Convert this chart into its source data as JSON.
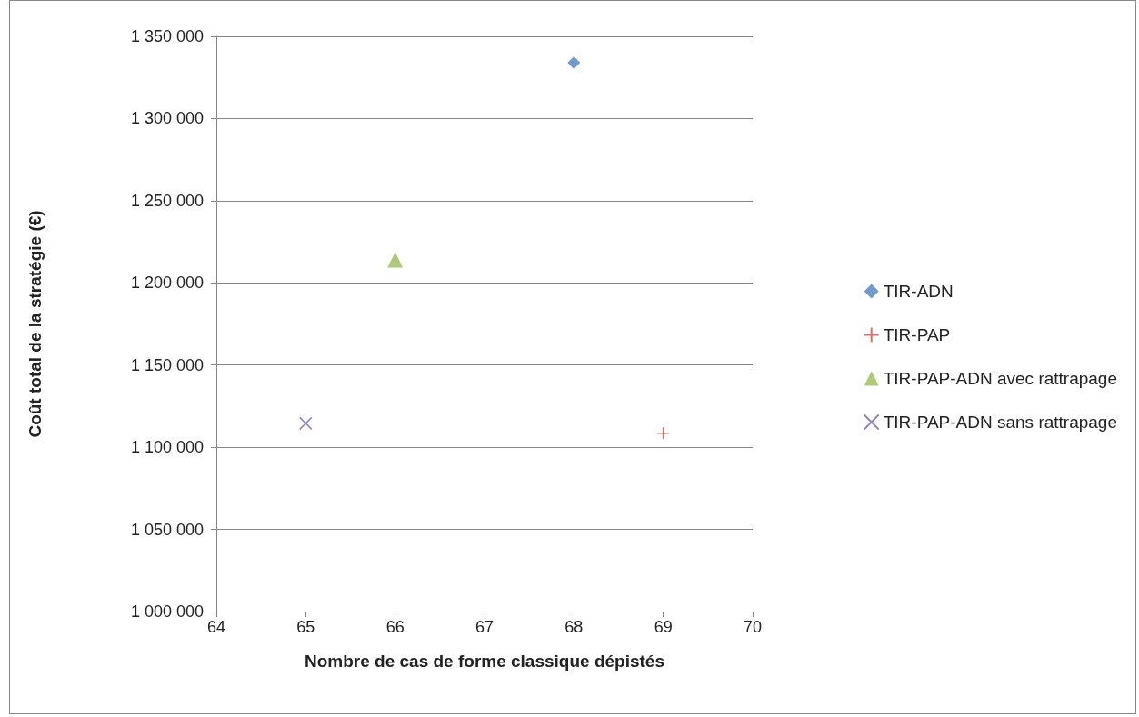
{
  "chart_data": {
    "type": "scatter",
    "xlabel": "Nombre de cas de forme classique dépistés",
    "ylabel": "Coût total de la stratégie (€)",
    "xlim": [
      64,
      70
    ],
    "xticks": [
      64,
      65,
      66,
      67,
      68,
      69,
      70
    ],
    "ylim": [
      1000000,
      1350000
    ],
    "yticks": [
      {
        "value": 1000000,
        "label": "1 000 000"
      },
      {
        "value": 1050000,
        "label": "1 050 000"
      },
      {
        "value": 1100000,
        "label": "1 100 000"
      },
      {
        "value": 1150000,
        "label": "1 150 000"
      },
      {
        "value": 1200000,
        "label": "1 200 000"
      },
      {
        "value": 1250000,
        "label": "1 250 000"
      },
      {
        "value": 1300000,
        "label": "1 300 000"
      },
      {
        "value": 1350000,
        "label": "1 350 000"
      }
    ],
    "grid": "y",
    "legend": "right",
    "series": [
      {
        "name": "TIR-ADN",
        "color": "#4f81bd",
        "marker": "diamond",
        "x": [
          68
        ],
        "values": [
          1334000
        ]
      },
      {
        "name": "TIR-PAP",
        "color": "#c0504d",
        "marker": "plus",
        "x": [
          69
        ],
        "values": [
          1108500
        ]
      },
      {
        "name": "TIR-PAP-ADN avec rattrapage",
        "color": "#9bbb59",
        "marker": "triangle",
        "x": [
          66
        ],
        "values": [
          1214000
        ]
      },
      {
        "name": "TIR-PAP-ADN sans rattrapage",
        "color": "#8064a2",
        "marker": "cross",
        "x": [
          65
        ],
        "values": [
          1114500
        ]
      }
    ]
  }
}
